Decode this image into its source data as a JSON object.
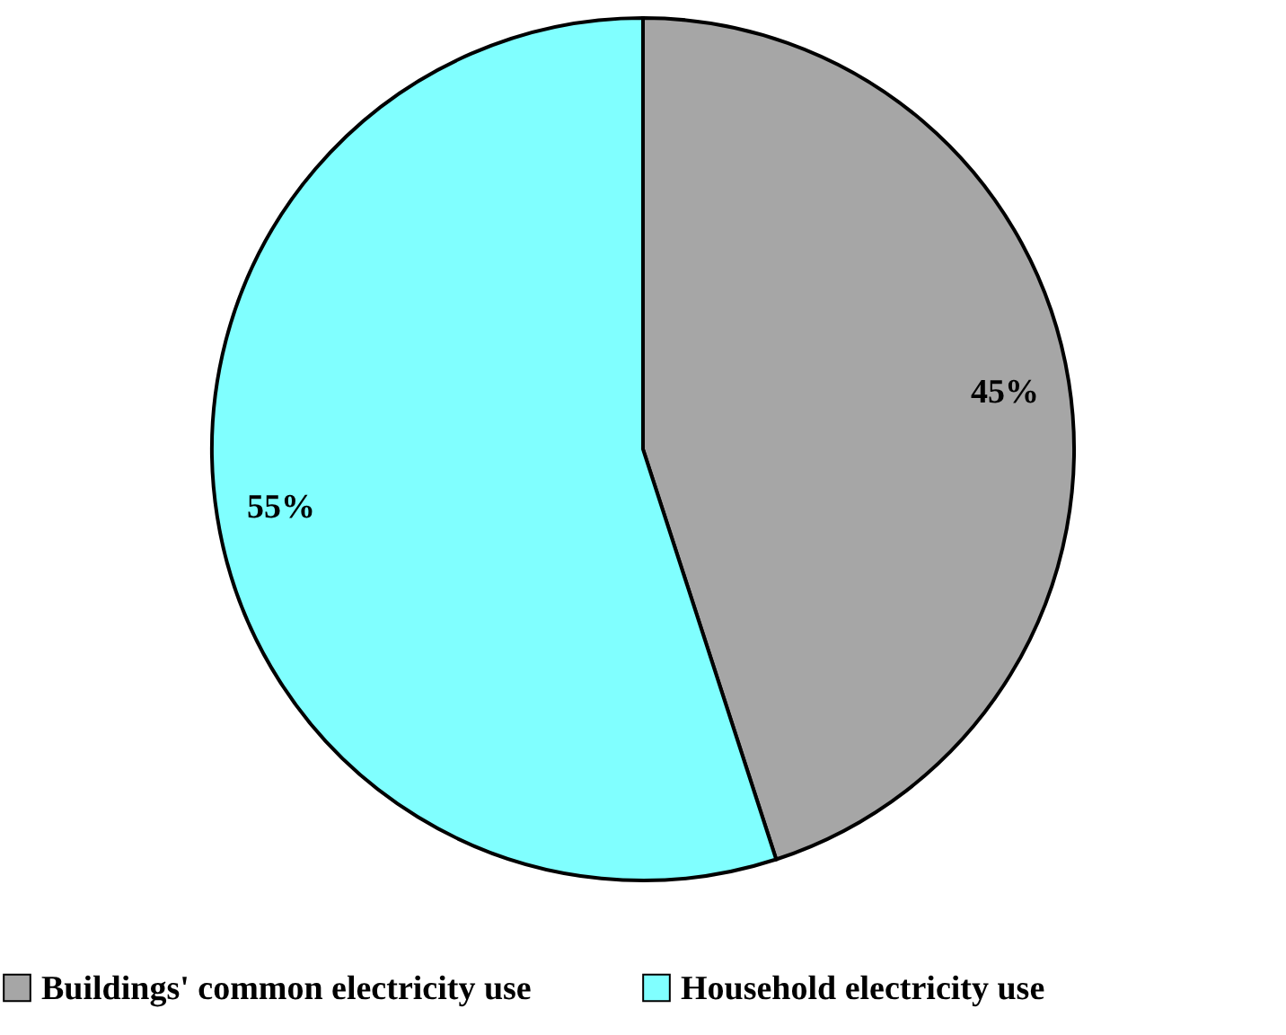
{
  "chart_data": {
    "type": "pie",
    "categories": [
      "Buildings' common electricity use",
      "Household electricity use"
    ],
    "values": [
      45,
      55
    ],
    "colors": [
      "#a6a6a6",
      "#80ffff"
    ],
    "value_labels": [
      "45%",
      "55%"
    ],
    "legend": "bottom"
  }
}
